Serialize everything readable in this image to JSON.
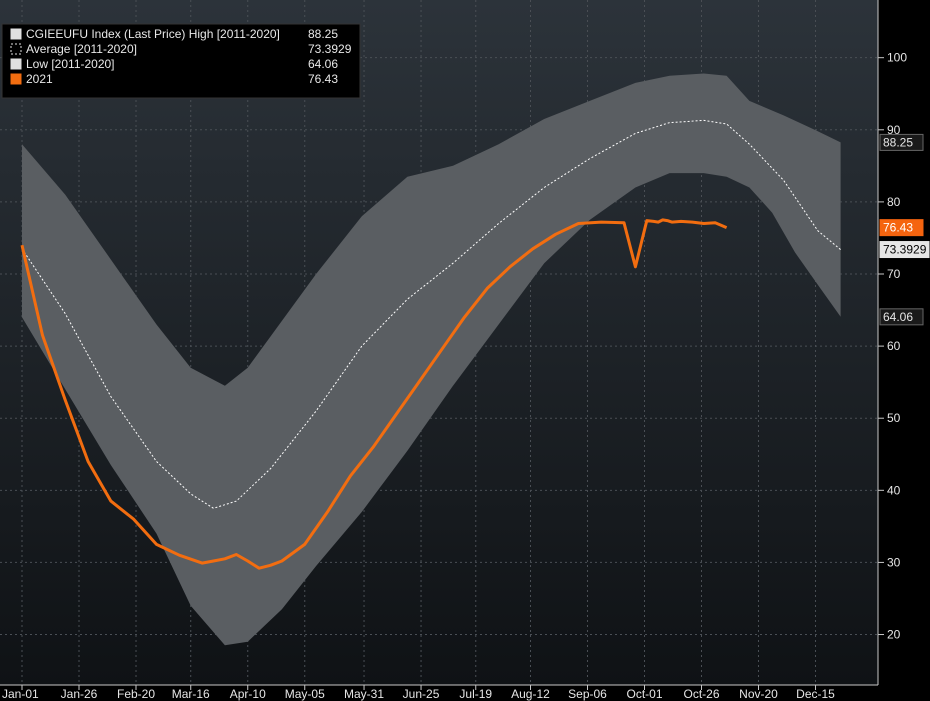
{
  "chart_data": {
    "type": "area",
    "legend": {
      "placement": "top-left",
      "entries": [
        {
          "key": "high",
          "label": "CGIEEUFU Index (Last Price) High [2011-2020]",
          "value": "88.25"
        },
        {
          "key": "average",
          "label": "Average [2011-2020]",
          "value": "73.3929"
        },
        {
          "key": "low",
          "label": "Low [2011-2020]",
          "value": "64.06"
        },
        {
          "key": "y2021",
          "label": "2021",
          "value": "76.43"
        }
      ]
    },
    "x_tick_labels": [
      "Jan-01",
      "Jan-26",
      "Feb-20",
      "Mar-16",
      "Apr-10",
      "May-05",
      "May-31",
      "Jun-25",
      "Jul-19",
      "Aug-12",
      "Sep-06",
      "Oct-01",
      "Oct-26",
      "Nov-20",
      "Dec-15"
    ],
    "x_tick_days": [
      1,
      26,
      51,
      75,
      100,
      125,
      151,
      176,
      200,
      224,
      249,
      274,
      299,
      324,
      349
    ],
    "y_ticks": [
      20,
      30,
      40,
      50,
      60,
      70,
      80,
      90,
      100
    ],
    "ylim": [
      13,
      108
    ],
    "xlim": [
      1,
      365
    ],
    "grid": true,
    "series": [
      {
        "key": "high",
        "x": [
          1,
          20,
          40,
          60,
          75,
          90,
          100,
          115,
          130,
          150,
          170,
          190,
          210,
          230,
          250,
          270,
          285,
          300,
          310,
          320,
          335,
          350,
          360
        ],
        "values": [
          88,
          81,
          72,
          63,
          57,
          54.5,
          57,
          63.5,
          70,
          78,
          83.5,
          85,
          88,
          91.5,
          94,
          96.5,
          97.5,
          97.8,
          97.5,
          94,
          92,
          89.8,
          88.25
        ]
      },
      {
        "key": "low",
        "x": [
          1,
          20,
          40,
          60,
          75,
          90,
          100,
          115,
          130,
          150,
          170,
          190,
          210,
          230,
          250,
          270,
          285,
          300,
          310,
          320,
          330,
          340,
          350,
          360
        ],
        "values": [
          64,
          54,
          43.5,
          34,
          24,
          18.5,
          19,
          23.5,
          29.5,
          37,
          45.5,
          54.5,
          63,
          71.5,
          77.5,
          82,
          84,
          84,
          83.5,
          82,
          78.5,
          73,
          68.5,
          64.06
        ]
      },
      {
        "key": "average",
        "x": [
          1,
          20,
          40,
          60,
          75,
          85,
          95,
          110,
          130,
          150,
          170,
          190,
          210,
          230,
          250,
          270,
          285,
          300,
          310,
          320,
          335,
          350,
          360
        ],
        "values": [
          73.5,
          64.5,
          53,
          44,
          39.5,
          37.5,
          38.5,
          43,
          51,
          60,
          66.5,
          71.5,
          77,
          82,
          86,
          89.5,
          91,
          91.3,
          90.8,
          88,
          83,
          76,
          73.39
        ]
      },
      {
        "key": "y2021",
        "x": [
          1,
          10,
          20,
          30,
          40,
          50,
          60,
          70,
          80,
          85,
          90,
          95,
          100,
          105,
          110,
          115,
          125,
          135,
          145,
          155,
          165,
          175,
          185,
          195,
          205,
          215,
          225,
          235,
          245,
          255,
          265,
          270,
          275,
          278,
          280,
          282,
          284,
          286,
          290,
          295,
          300,
          305,
          310
        ],
        "values": [
          74,
          61.5,
          52.5,
          44,
          38.5,
          36,
          32.5,
          31,
          29.9,
          30.2,
          30.5,
          31.1,
          30.2,
          29.2,
          29.6,
          30.2,
          32.5,
          37,
          42,
          46,
          50.5,
          55,
          59.5,
          64,
          68,
          71,
          73.5,
          75.5,
          77,
          77.2,
          77.1,
          71,
          77.4,
          77.3,
          77.2,
          77.5,
          77.4,
          77.2,
          77.3,
          77.2,
          77,
          77.1,
          76.43
        ]
      }
    ],
    "value_tags": [
      {
        "key": "high",
        "text": "88.25",
        "value": 88.25,
        "bg": "#1a1a1a",
        "border": "#666666",
        "fg": "#e6e6e6"
      },
      {
        "key": "y2021",
        "text": "76.43",
        "value": 76.43,
        "bg": "#f5640f",
        "border": "#f5640f",
        "fg": "#ffffff"
      },
      {
        "key": "average",
        "text": "73.3929",
        "value": 73.3929,
        "bg": "#e6e6e6",
        "border": "#e6e6e6",
        "fg": "#000000"
      },
      {
        "key": "low",
        "text": "64.06",
        "value": 64.06,
        "bg": "#1a1a1a",
        "border": "#666666",
        "fg": "#e6e6e6"
      }
    ],
    "colors": {
      "band": "#5a5e62",
      "average": "#ffffff",
      "y2021": "#f26d10",
      "grid": "#4a4f55",
      "background_top": "#2c333a",
      "background_bottom": "#0f1215"
    }
  }
}
